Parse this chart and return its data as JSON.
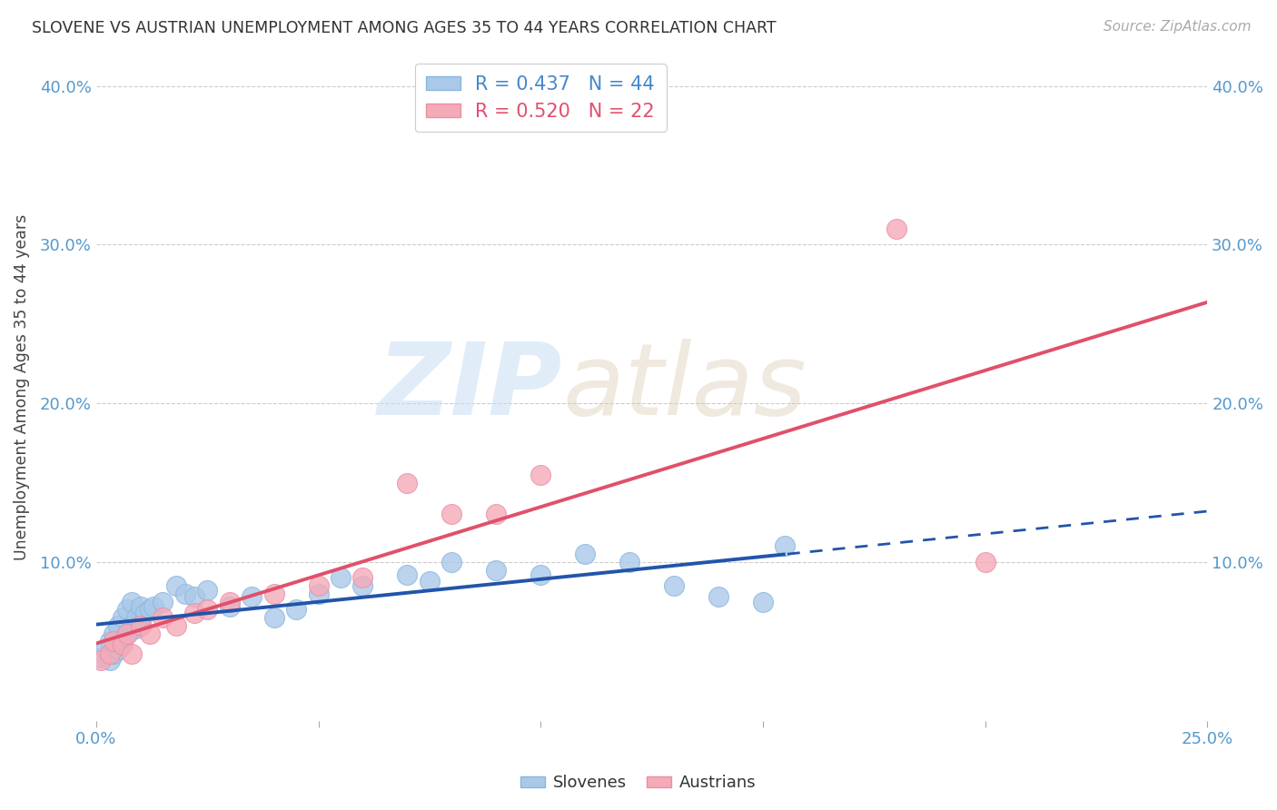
{
  "title": "SLOVENE VS AUSTRIAN UNEMPLOYMENT AMONG AGES 35 TO 44 YEARS CORRELATION CHART",
  "source": "Source: ZipAtlas.com",
  "ylabel": "Unemployment Among Ages 35 to 44 years",
  "xlim": [
    0.0,
    0.25
  ],
  "ylim": [
    0.0,
    0.42
  ],
  "xticks": [
    0.0,
    0.05,
    0.1,
    0.15,
    0.2,
    0.25
  ],
  "yticks": [
    0.1,
    0.2,
    0.3,
    0.4
  ],
  "right_ytick_labels": [
    "10.0%",
    "20.0%",
    "30.0%",
    "40.0%"
  ],
  "left_ytick_labels": [
    "10.0%",
    "20.0%",
    "30.0%",
    "40.0%"
  ],
  "xtick_labels_left": "0.0%",
  "xtick_labels_right": "25.0%",
  "slovene_color": "#aac8e8",
  "austrian_color": "#f5aab8",
  "slovene_line_color": "#2255aa",
  "austrian_line_color": "#e0506a",
  "tick_color": "#5599cc",
  "slovene_r": 0.437,
  "slovene_n": 44,
  "austrian_r": 0.52,
  "austrian_n": 22,
  "background_color": "#ffffff",
  "grid_color": "#cccccc",
  "slovene_x": [
    0.001,
    0.002,
    0.003,
    0.003,
    0.004,
    0.004,
    0.005,
    0.005,
    0.006,
    0.006,
    0.007,
    0.007,
    0.008,
    0.008,
    0.009,
    0.009,
    0.01,
    0.01,
    0.011,
    0.012,
    0.013,
    0.015,
    0.018,
    0.02,
    0.022,
    0.025,
    0.03,
    0.035,
    0.04,
    0.045,
    0.05,
    0.055,
    0.06,
    0.07,
    0.075,
    0.08,
    0.09,
    0.1,
    0.11,
    0.12,
    0.13,
    0.14,
    0.15,
    0.155
  ],
  "slovene_y": [
    0.04,
    0.045,
    0.038,
    0.05,
    0.042,
    0.055,
    0.045,
    0.06,
    0.05,
    0.065,
    0.055,
    0.07,
    0.06,
    0.075,
    0.058,
    0.065,
    0.06,
    0.072,
    0.068,
    0.07,
    0.072,
    0.075,
    0.085,
    0.08,
    0.078,
    0.082,
    0.072,
    0.078,
    0.065,
    0.07,
    0.08,
    0.09,
    0.085,
    0.092,
    0.088,
    0.1,
    0.095,
    0.092,
    0.105,
    0.1,
    0.085,
    0.078,
    0.075,
    0.11
  ],
  "austrian_x": [
    0.001,
    0.003,
    0.004,
    0.006,
    0.007,
    0.008,
    0.01,
    0.012,
    0.015,
    0.018,
    0.022,
    0.025,
    0.03,
    0.04,
    0.05,
    0.06,
    0.07,
    0.08,
    0.09,
    0.1,
    0.18,
    0.2
  ],
  "austrian_y": [
    0.038,
    0.042,
    0.05,
    0.048,
    0.055,
    0.042,
    0.06,
    0.055,
    0.065,
    0.06,
    0.068,
    0.07,
    0.075,
    0.08,
    0.085,
    0.09,
    0.15,
    0.13,
    0.13,
    0.155,
    0.31,
    0.1
  ],
  "slovene_line_x_solid_end": 0.155,
  "slovene_line_intercept": 0.038,
  "slovene_line_slope": 0.48,
  "austrian_line_intercept": 0.032,
  "austrian_line_slope": 0.82
}
